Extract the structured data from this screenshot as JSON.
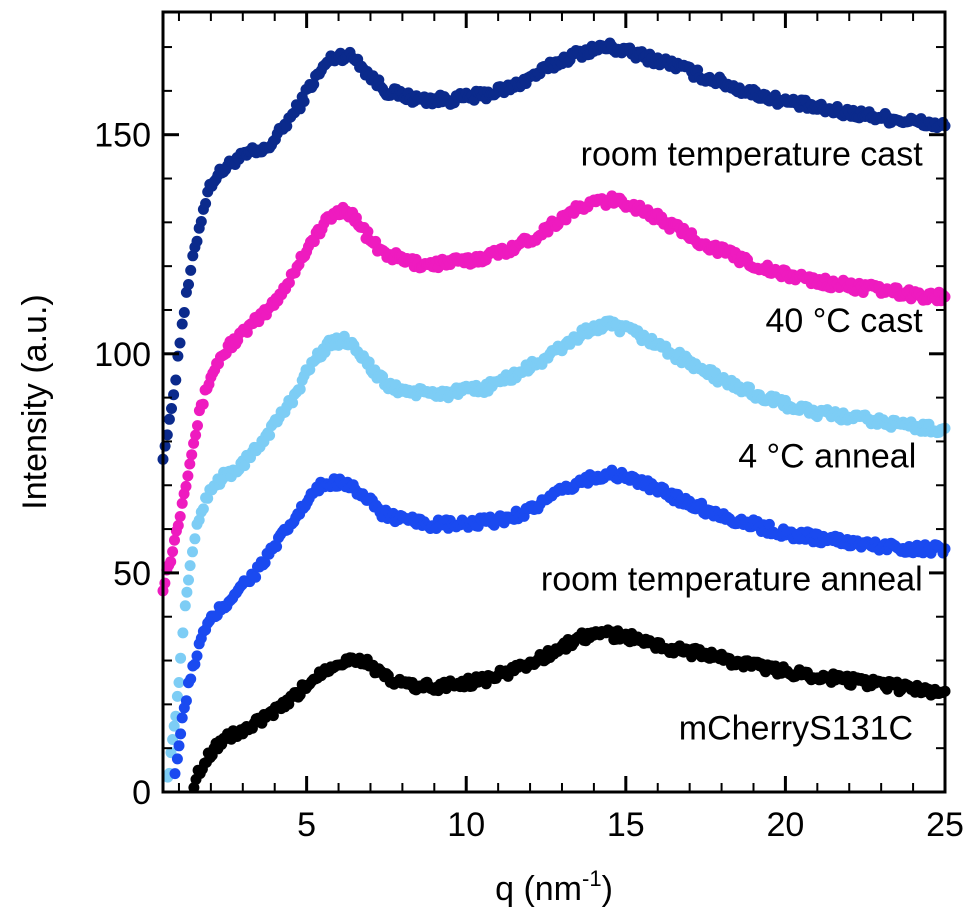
{
  "chart_data": {
    "type": "scatter",
    "xlabel": "q (nm",
    "xlabel_sup": "-1",
    "xlabel_tail": ")",
    "ylabel": "Intensity (a.u.)",
    "xlim": [
      0.5,
      25
    ],
    "ylim": [
      0,
      178
    ],
    "x_ticks": [
      {
        "value": 5,
        "label": "5"
      },
      {
        "value": 10,
        "label": "10"
      },
      {
        "value": 15,
        "label": "15"
      },
      {
        "value": 20,
        "label": "20"
      },
      {
        "value": 25,
        "label": "25"
      }
    ],
    "y_ticks": [
      {
        "value": 0,
        "label": "0"
      },
      {
        "value": 50,
        "label": "50"
      },
      {
        "value": 100,
        "label": "100"
      },
      {
        "value": 150,
        "label": "150"
      }
    ],
    "series": [
      {
        "name": "room temperature cast",
        "color": "#0b2a8c",
        "label_q": 24.3,
        "label_y": 143,
        "points": [
          [
            0.5,
            77
          ],
          [
            0.7,
            84
          ],
          [
            0.9,
            95
          ],
          [
            1.1,
            107
          ],
          [
            1.3,
            116
          ],
          [
            1.5,
            124
          ],
          [
            1.7,
            131
          ],
          [
            1.9,
            137
          ],
          [
            2.1,
            140
          ],
          [
            2.4,
            142
          ],
          [
            2.7,
            144
          ],
          [
            3.0,
            145
          ],
          [
            3.3,
            146
          ],
          [
            3.6,
            146
          ],
          [
            3.9,
            148
          ],
          [
            4.2,
            151
          ],
          [
            4.5,
            154
          ],
          [
            4.8,
            157
          ],
          [
            5.1,
            161
          ],
          [
            5.4,
            164
          ],
          [
            5.7,
            167
          ],
          [
            6.0,
            168
          ],
          [
            6.3,
            168
          ],
          [
            6.6,
            167
          ],
          [
            6.9,
            164
          ],
          [
            7.2,
            162
          ],
          [
            7.5,
            160
          ],
          [
            8.0,
            159
          ],
          [
            8.5,
            158
          ],
          [
            9.0,
            158
          ],
          [
            9.5,
            158
          ],
          [
            10.0,
            158.5
          ],
          [
            10.5,
            159
          ],
          [
            11.0,
            160
          ],
          [
            11.5,
            161
          ],
          [
            12.0,
            163
          ],
          [
            12.5,
            165
          ],
          [
            13.0,
            167
          ],
          [
            13.5,
            168.5
          ],
          [
            14.0,
            169.5
          ],
          [
            14.5,
            170
          ],
          [
            15.0,
            169
          ],
          [
            15.5,
            168
          ],
          [
            16.0,
            167
          ],
          [
            16.5,
            166
          ],
          [
            17.0,
            164.5
          ],
          [
            17.5,
            163
          ],
          [
            18.0,
            162
          ],
          [
            18.5,
            160.5
          ],
          [
            19.0,
            159.5
          ],
          [
            19.5,
            158.5
          ],
          [
            20.0,
            157.5
          ],
          [
            20.5,
            157
          ],
          [
            21.0,
            156
          ],
          [
            21.5,
            155.5
          ],
          [
            22.0,
            155
          ],
          [
            22.5,
            154.5
          ],
          [
            23.0,
            154
          ],
          [
            23.5,
            153.5
          ],
          [
            24.0,
            153
          ],
          [
            24.5,
            152.5
          ],
          [
            25.0,
            152
          ]
        ]
      },
      {
        "name": "40 °C cast",
        "color": "#ee1bbf",
        "label_q": 24.3,
        "label_y": 105,
        "points": [
          [
            0.5,
            47
          ],
          [
            0.8,
            55
          ],
          [
            1.1,
            66
          ],
          [
            1.4,
            78
          ],
          [
            1.7,
            88
          ],
          [
            2.0,
            95
          ],
          [
            2.3,
            99
          ],
          [
            2.6,
            102
          ],
          [
            2.9,
            104
          ],
          [
            3.2,
            106
          ],
          [
            3.5,
            108
          ],
          [
            3.8,
            110
          ],
          [
            4.1,
            113
          ],
          [
            4.4,
            116
          ],
          [
            4.7,
            120
          ],
          [
            5.0,
            124
          ],
          [
            5.3,
            127
          ],
          [
            5.6,
            130
          ],
          [
            5.9,
            132
          ],
          [
            6.2,
            133
          ],
          [
            6.5,
            131
          ],
          [
            6.8,
            128
          ],
          [
            7.1,
            125
          ],
          [
            7.4,
            123
          ],
          [
            7.8,
            122
          ],
          [
            8.2,
            121
          ],
          [
            8.6,
            120.5
          ],
          [
            9.0,
            120.5
          ],
          [
            9.5,
            121
          ],
          [
            10.0,
            121
          ],
          [
            10.5,
            122
          ],
          [
            11.0,
            123
          ],
          [
            11.5,
            124.5
          ],
          [
            12.0,
            126
          ],
          [
            12.5,
            128.5
          ],
          [
            13.0,
            131
          ],
          [
            13.5,
            133
          ],
          [
            14.0,
            134.5
          ],
          [
            14.5,
            135
          ],
          [
            15.0,
            134.5
          ],
          [
            15.5,
            133
          ],
          [
            16.0,
            131
          ],
          [
            16.5,
            129
          ],
          [
            17.0,
            127
          ],
          [
            17.5,
            125
          ],
          [
            18.0,
            123.5
          ],
          [
            18.5,
            122
          ],
          [
            19.0,
            120.5
          ],
          [
            19.5,
            119
          ],
          [
            20.0,
            118
          ],
          [
            20.5,
            117.5
          ],
          [
            21.0,
            116.5
          ],
          [
            21.5,
            116
          ],
          [
            22.0,
            115.5
          ],
          [
            22.5,
            115
          ],
          [
            23.0,
            114.5
          ],
          [
            23.5,
            114
          ],
          [
            24.0,
            113.5
          ],
          [
            24.5,
            113
          ],
          [
            25.0,
            113
          ]
        ]
      },
      {
        "name": "4 °C anneal",
        "color": "#7dcdf5",
        "label_q": 24.1,
        "label_y": 74,
        "points": [
          [
            0.6,
            0
          ],
          [
            0.75,
            8
          ],
          [
            0.9,
            18
          ],
          [
            1.05,
            30
          ],
          [
            1.2,
            42
          ],
          [
            1.35,
            52
          ],
          [
            1.5,
            58
          ],
          [
            1.7,
            64
          ],
          [
            1.9,
            68
          ],
          [
            2.1,
            70
          ],
          [
            2.4,
            72
          ],
          [
            2.7,
            73
          ],
          [
            3.0,
            75
          ],
          [
            3.3,
            77
          ],
          [
            3.6,
            80
          ],
          [
            3.9,
            83
          ],
          [
            4.2,
            86
          ],
          [
            4.5,
            89
          ],
          [
            4.8,
            93
          ],
          [
            5.1,
            97
          ],
          [
            5.4,
            100
          ],
          [
            5.7,
            102
          ],
          [
            6.0,
            103
          ],
          [
            6.3,
            103
          ],
          [
            6.6,
            101
          ],
          [
            6.9,
            98
          ],
          [
            7.2,
            95
          ],
          [
            7.5,
            93
          ],
          [
            7.8,
            92
          ],
          [
            8.2,
            91.5
          ],
          [
            8.6,
            91
          ],
          [
            9.0,
            91
          ],
          [
            9.5,
            91
          ],
          [
            10.0,
            91.5
          ],
          [
            10.5,
            92
          ],
          [
            11.0,
            93.5
          ],
          [
            11.5,
            95
          ],
          [
            12.0,
            97
          ],
          [
            12.5,
            99
          ],
          [
            13.0,
            101.5
          ],
          [
            13.5,
            104
          ],
          [
            14.0,
            106
          ],
          [
            14.5,
            106.5
          ],
          [
            15.0,
            105.5
          ],
          [
            15.5,
            104
          ],
          [
            16.0,
            102
          ],
          [
            16.5,
            100
          ],
          [
            17.0,
            98
          ],
          [
            17.5,
            96
          ],
          [
            18.0,
            94
          ],
          [
            18.5,
            92.5
          ],
          [
            19.0,
            91
          ],
          [
            19.5,
            89.5
          ],
          [
            20.0,
            88.5
          ],
          [
            20.5,
            87.5
          ],
          [
            21.0,
            86.5
          ],
          [
            21.5,
            86
          ],
          [
            22.0,
            85.5
          ],
          [
            22.5,
            85
          ],
          [
            23.0,
            84.5
          ],
          [
            23.5,
            84
          ],
          [
            24.0,
            83.5
          ],
          [
            24.5,
            83
          ],
          [
            25.0,
            83
          ]
        ]
      },
      {
        "name": "room temperature anneal",
        "color": "#1a4af0",
        "label_q": 24.3,
        "label_y": 46,
        "points": [
          [
            0.8,
            0
          ],
          [
            0.95,
            8
          ],
          [
            1.1,
            16
          ],
          [
            1.3,
            24
          ],
          [
            1.5,
            30
          ],
          [
            1.7,
            35
          ],
          [
            1.9,
            38
          ],
          [
            2.2,
            41
          ],
          [
            2.5,
            43
          ],
          [
            2.8,
            46
          ],
          [
            3.1,
            48
          ],
          [
            3.4,
            50
          ],
          [
            3.7,
            53
          ],
          [
            4.0,
            56
          ],
          [
            4.3,
            59
          ],
          [
            4.6,
            62
          ],
          [
            4.9,
            65
          ],
          [
            5.2,
            68
          ],
          [
            5.5,
            70
          ],
          [
            5.8,
            70.5
          ],
          [
            6.1,
            71
          ],
          [
            6.4,
            70
          ],
          [
            6.7,
            68
          ],
          [
            7.0,
            66
          ],
          [
            7.3,
            64
          ],
          [
            7.6,
            63
          ],
          [
            8.0,
            62
          ],
          [
            8.5,
            61.5
          ],
          [
            9.0,
            61
          ],
          [
            9.5,
            61
          ],
          [
            10.0,
            61
          ],
          [
            10.5,
            61.5
          ],
          [
            11.0,
            62
          ],
          [
            11.5,
            63
          ],
          [
            12.0,
            64.5
          ],
          [
            12.5,
            66.5
          ],
          [
            13.0,
            68.5
          ],
          [
            13.5,
            70.5
          ],
          [
            14.0,
            72
          ],
          [
            14.5,
            72.5
          ],
          [
            15.0,
            72
          ],
          [
            15.5,
            70.5
          ],
          [
            16.0,
            69
          ],
          [
            16.5,
            67.5
          ],
          [
            17.0,
            66
          ],
          [
            17.5,
            64.5
          ],
          [
            18.0,
            63
          ],
          [
            18.5,
            62
          ],
          [
            19.0,
            61
          ],
          [
            19.5,
            60
          ],
          [
            20.0,
            59
          ],
          [
            20.5,
            58.5
          ],
          [
            21.0,
            58
          ],
          [
            21.5,
            57.5
          ],
          [
            22.0,
            57
          ],
          [
            22.5,
            56.5
          ],
          [
            23.0,
            56
          ],
          [
            23.5,
            56
          ],
          [
            24.0,
            55.5
          ],
          [
            24.5,
            55.5
          ],
          [
            25.0,
            55.5
          ]
        ]
      },
      {
        "name": "mCherryS131C",
        "color": "#000000",
        "label_q": 24.0,
        "label_y": 12,
        "points": [
          [
            1.4,
            0
          ],
          [
            1.6,
            4
          ],
          [
            1.8,
            7
          ],
          [
            2.1,
            10
          ],
          [
            2.4,
            12
          ],
          [
            2.7,
            13
          ],
          [
            3.0,
            14
          ],
          [
            3.3,
            15
          ],
          [
            3.6,
            16.5
          ],
          [
            3.9,
            18
          ],
          [
            4.2,
            19
          ],
          [
            4.5,
            21
          ],
          [
            4.8,
            23
          ],
          [
            5.1,
            25
          ],
          [
            5.4,
            27
          ],
          [
            5.7,
            28.5
          ],
          [
            6.0,
            29.5
          ],
          [
            6.3,
            30
          ],
          [
            6.6,
            30.5
          ],
          [
            6.9,
            29.5
          ],
          [
            7.2,
            27.5
          ],
          [
            7.5,
            26
          ],
          [
            7.8,
            25
          ],
          [
            8.2,
            24.5
          ],
          [
            8.6,
            24
          ],
          [
            9.0,
            24
          ],
          [
            9.5,
            24.5
          ],
          [
            10.0,
            25
          ],
          [
            10.5,
            25.5
          ],
          [
            11.0,
            26.5
          ],
          [
            11.5,
            28
          ],
          [
            12.0,
            29.5
          ],
          [
            12.5,
            31
          ],
          [
            13.0,
            33
          ],
          [
            13.5,
            35
          ],
          [
            14.0,
            36
          ],
          [
            14.5,
            36
          ],
          [
            15.0,
            35.5
          ],
          [
            15.5,
            34.5
          ],
          [
            16.0,
            33.5
          ],
          [
            16.5,
            32.5
          ],
          [
            17.0,
            32
          ],
          [
            17.5,
            31.5
          ],
          [
            18.0,
            30.5
          ],
          [
            18.5,
            29.5
          ],
          [
            19.0,
            29
          ],
          [
            19.5,
            28
          ],
          [
            20.0,
            27.5
          ],
          [
            20.5,
            27
          ],
          [
            21.0,
            26.5
          ],
          [
            21.5,
            26
          ],
          [
            22.0,
            25.5
          ],
          [
            22.5,
            25
          ],
          [
            23.0,
            24.5
          ],
          [
            23.5,
            24
          ],
          [
            24.0,
            23.5
          ],
          [
            24.5,
            23
          ],
          [
            25.0,
            23
          ]
        ]
      }
    ]
  }
}
